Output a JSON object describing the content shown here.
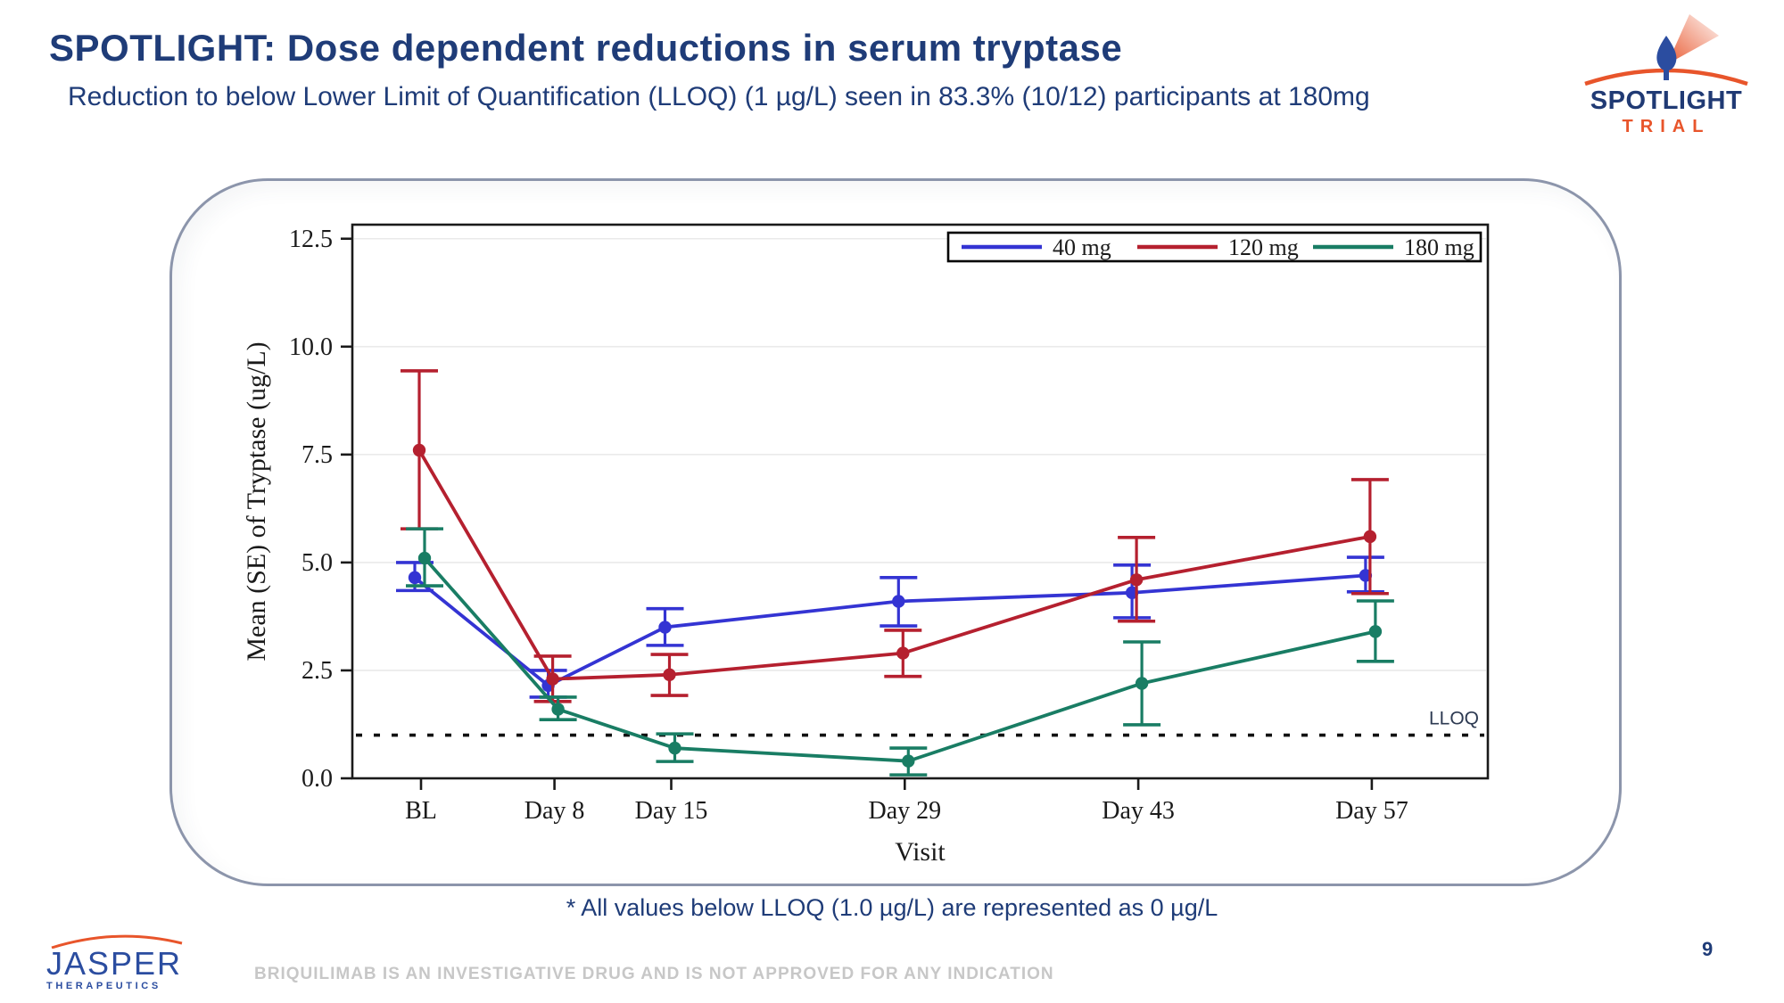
{
  "slide": {
    "title": "SPOTLIGHT: Dose dependent reductions in serum tryptase",
    "subtitle": "Reduction to below Lower Limit of Quantification  (LLOQ) (1 µg/L) seen in 83.3% (10/12) participants at 180mg",
    "footnote": "* All values below LLOQ (1.0 µg/L) are represented as 0 µg/L",
    "disclaimer": "BRIQUILIMAB IS AN INVESTIGATIVE DRUG AND IS NOT APPROVED FOR ANY INDICATION",
    "page_number": "9"
  },
  "logos": {
    "spotlight": {
      "line1": "SPOTLIGHT",
      "line2": "TRIAL"
    },
    "jasper": {
      "line1": "JASPER",
      "line2": "THERAPEUTICS"
    }
  },
  "colors": {
    "bar_blue": "#2a4d9e",
    "bar_orange": "#e8502b",
    "heading_navy": "#1f3c78",
    "series_40mg": "#3434d3",
    "series_120mg": "#b5202f",
    "series_180mg": "#197d64",
    "axis_black": "#1a1a1a",
    "gridline": "#eaeaea",
    "card_border": "#8c95ab",
    "lloq_text": "#2d3a52"
  },
  "chart_data": {
    "type": "line",
    "title": "",
    "xlabel": "Visit",
    "ylabel": "Mean (SE) of Tryptase (ug/L)",
    "categories": [
      "BL",
      "Day 8",
      "Day 15",
      "Day 29",
      "Day 43",
      "Day 57"
    ],
    "x_days": [
      0,
      8,
      15,
      29,
      43,
      57
    ],
    "ylim": [
      0,
      12.8
    ],
    "yticks": [
      0.0,
      2.5,
      5.0,
      7.5,
      10.0,
      12.5
    ],
    "grid": true,
    "legend_position": "top-right-inside",
    "error_bars": "SE",
    "reference_line": {
      "label": "LLOQ",
      "y": 1.0,
      "style": "dotted"
    },
    "series": [
      {
        "name": "40 mg",
        "color": "#3434d3",
        "values": [
          4.65,
          2.15,
          3.5,
          4.1,
          4.3,
          4.7
        ],
        "se_low": [
          4.35,
          1.88,
          3.08,
          3.53,
          3.72,
          4.32
        ],
        "se_high": [
          5.0,
          2.5,
          3.93,
          4.65,
          4.94,
          5.12
        ]
      },
      {
        "name": "120 mg",
        "color": "#b5202f",
        "values": [
          7.6,
          2.3,
          2.4,
          2.9,
          4.6,
          5.6
        ],
        "se_low": [
          5.78,
          1.78,
          1.92,
          2.36,
          3.64,
          4.28
        ],
        "se_high": [
          9.44,
          2.83,
          2.87,
          3.43,
          5.58,
          6.92
        ]
      },
      {
        "name": "180 mg",
        "color": "#197d64",
        "values": [
          5.1,
          1.6,
          0.7,
          0.4,
          2.2,
          3.4
        ],
        "se_low": [
          4.46,
          1.36,
          0.39,
          0.08,
          1.24,
          2.71
        ],
        "se_high": [
          5.78,
          1.88,
          1.03,
          0.7,
          3.16,
          4.11
        ]
      }
    ]
  }
}
